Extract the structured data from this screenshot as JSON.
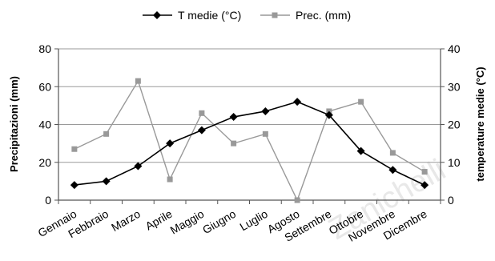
{
  "chart_data": {
    "type": "line",
    "categories": [
      "Gennaio",
      "Febbraio",
      "Marzo",
      "Aprile",
      "Maggio",
      "Giugno",
      "Luglio",
      "Agosto",
      "Settembre",
      "Ottobre",
      "Novembre",
      "Dicembre"
    ],
    "series": [
      {
        "name": "T medie (°C)",
        "axis": "right",
        "color": "#000000",
        "marker": "diamond",
        "values": [
          4,
          5,
          9,
          15,
          18.5,
          22,
          23.5,
          26,
          22.5,
          13,
          8,
          4
        ]
      },
      {
        "name": "Prec. (mm)",
        "axis": "left",
        "color": "#999999",
        "marker": "square",
        "values": [
          27,
          35,
          63,
          11,
          46,
          30,
          35,
          0,
          47,
          52,
          25,
          15
        ]
      }
    ],
    "ylabel_left": "Precipitazioni (mm)",
    "ylabel_right": "temperature medie (°C)",
    "ylim_left": [
      0,
      80
    ],
    "yticks_left": [
      0,
      20,
      40,
      60,
      80
    ],
    "ylim_right": [
      0,
      40
    ],
    "yticks_right": [
      0,
      10,
      20,
      30,
      40
    ],
    "grid": "horizontal",
    "legend_position": "top-center",
    "watermark": "Zanichelli"
  }
}
